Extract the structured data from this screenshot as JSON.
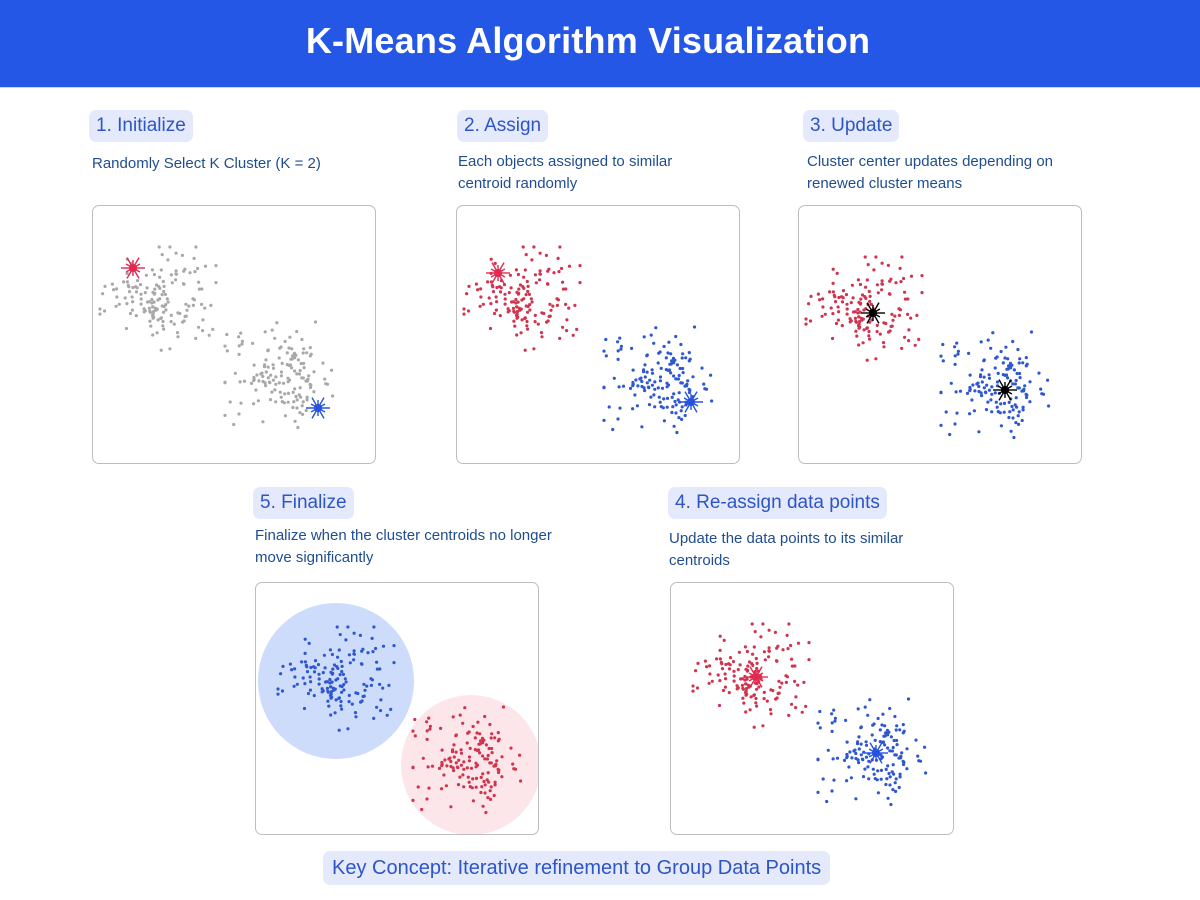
{
  "header": {
    "title": "K-Means Algorithm Visualization",
    "background": "#2557e6"
  },
  "colors": {
    "gray_point": "#a8a8a8",
    "red_point": "#d0344e",
    "blue_point": "#2f58cf",
    "red_centroid": "#e2294f",
    "blue_centroid": "#2553e0",
    "updated_centroid": "#000000",
    "blue_region": "#cddcfb",
    "red_region": "#fde6e9"
  },
  "steps": [
    {
      "id": "initialize",
      "label": "1. Initialize",
      "description": "Randomly Select K Cluster (K = 2)"
    },
    {
      "id": "assign",
      "label": "2. Assign",
      "description": "Each objects assigned to similar centroid randomly"
    },
    {
      "id": "update",
      "label": "3. Update",
      "description": "Cluster center updates depending on renewed cluster means"
    },
    {
      "id": "reassign",
      "label": "4. Re-assign data points",
      "description": "Update the data points to its similar centroids"
    },
    {
      "id": "finalize",
      "label": "5. Finalize",
      "description": "Finalize when the cluster centroids no longer move significantly"
    }
  ],
  "key_concept": "Key Concept: Iterative refinement to Group Data Points",
  "chart_data": [
    {
      "type": "scatter",
      "title": "1. Initialize",
      "k": 2,
      "clusters": [
        {
          "center": [
            65,
            95
          ],
          "color": "gray"
        },
        {
          "center": [
            190,
            170
          ],
          "color": "gray"
        }
      ],
      "centroids": [
        {
          "pos": [
            40,
            62
          ],
          "color": "red"
        },
        {
          "pos": [
            225,
            202
          ],
          "color": "blue"
        }
      ]
    },
    {
      "type": "scatter",
      "title": "2. Assign",
      "k": 2,
      "clusters": [
        {
          "center": [
            65,
            95
          ],
          "color": "red"
        },
        {
          "center": [
            205,
            175
          ],
          "color": "blue"
        }
      ],
      "centroids": [
        {
          "pos": [
            41,
            67
          ],
          "color": "red"
        },
        {
          "pos": [
            234,
            196
          ],
          "color": "blue"
        }
      ]
    },
    {
      "type": "scatter",
      "title": "3. Update",
      "k": 2,
      "clusters": [
        {
          "center": [
            65,
            105
          ],
          "color": "red"
        },
        {
          "center": [
            200,
            180
          ],
          "color": "blue"
        }
      ],
      "centroids": [
        {
          "pos": [
            74,
            107
          ],
          "color": "black"
        },
        {
          "pos": [
            206,
            184
          ],
          "color": "black"
        }
      ]
    },
    {
      "type": "scatter",
      "title": "4. Re-assign data points",
      "k": 2,
      "clusters": [
        {
          "center": [
            80,
            95
          ],
          "color": "red"
        },
        {
          "center": [
            205,
            170
          ],
          "color": "blue"
        }
      ],
      "centroids": [
        {
          "pos": [
            85,
            94
          ],
          "color": "red"
        },
        {
          "pos": [
            205,
            170
          ],
          "color": "blue"
        }
      ]
    },
    {
      "type": "scatter",
      "title": "5. Finalize",
      "k": 2,
      "clusters": [
        {
          "center": [
            80,
            98
          ],
          "color": "blue"
        },
        {
          "center": [
            215,
            178
          ],
          "color": "red"
        }
      ],
      "regions": [
        {
          "center": [
            80,
            98
          ],
          "radius": 78,
          "color": "blue"
        },
        {
          "center": [
            215,
            182
          ],
          "radius": 70,
          "color": "red"
        }
      ]
    }
  ]
}
